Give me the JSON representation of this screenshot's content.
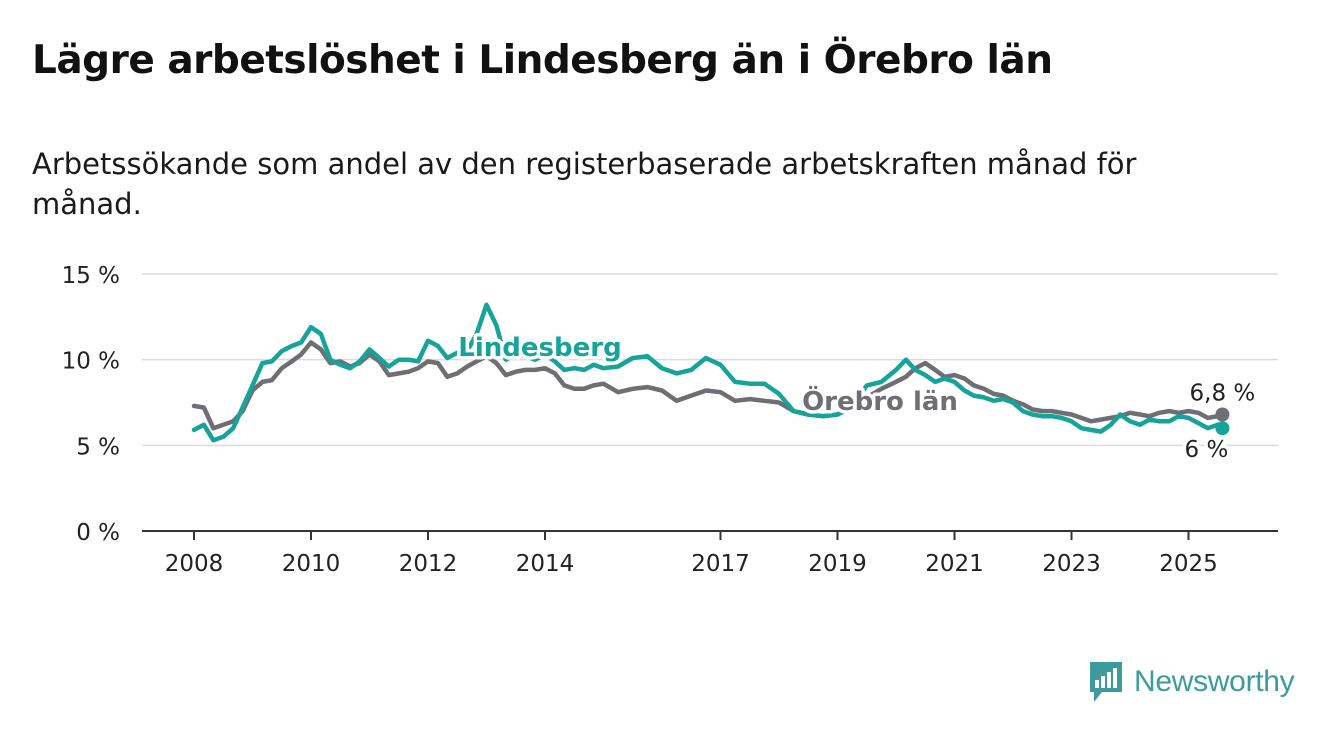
{
  "title": "Lägre arbetslöshet i Lindesberg än i Örebro län",
  "subtitle": "Arbetssökande som andel av den registerbaserade arbetskraften månad för månad.",
  "brand": {
    "name": "Newsworthy",
    "icon": "bar-chart-speech-bubble-icon",
    "color": "#3d9b9b"
  },
  "chart_data": {
    "type": "line",
    "ylim": [
      0,
      15
    ],
    "xlim": [
      2008,
      2027.3
    ],
    "y_ticks": [
      0,
      5,
      10,
      15
    ],
    "y_tick_labels": [
      "0 %",
      "5 %",
      "10 %",
      "15 %"
    ],
    "x_ticks": [
      2008,
      2010,
      2012,
      2014,
      2017,
      2019,
      2021,
      2023,
      2025
    ],
    "x_tick_labels": [
      "2008",
      "2010",
      "2012",
      "2014",
      "2017",
      "2019",
      "2021",
      "2023",
      "2025"
    ],
    "grid": true,
    "legend": "inline labels",
    "series": [
      {
        "name": "Örebro län",
        "color": "#6e6e75",
        "end_label": "6,8 %",
        "x": [
          2008.0,
          2008.17,
          2008.33,
          2008.5,
          2008.67,
          2008.83,
          2009.0,
          2009.17,
          2009.33,
          2009.5,
          2009.67,
          2009.83,
          2010.0,
          2010.17,
          2010.33,
          2010.5,
          2010.67,
          2010.83,
          2011.0,
          2011.17,
          2011.33,
          2011.5,
          2011.67,
          2011.83,
          2012.0,
          2012.17,
          2012.33,
          2012.5,
          2012.67,
          2012.83,
          2013.0,
          2013.17,
          2013.33,
          2013.5,
          2013.67,
          2013.83,
          2014.0,
          2014.17,
          2014.33,
          2014.5,
          2014.67,
          2014.83,
          2015.0,
          2015.25,
          2015.5,
          2015.75,
          2016.0,
          2016.25,
          2016.5,
          2016.75,
          2017.0,
          2017.25,
          2017.5,
          2017.75,
          2018.0,
          2018.25,
          2018.5,
          2018.75,
          2019.0,
          2019.25,
          2019.5,
          2019.75,
          2020.0,
          2020.17,
          2020.33,
          2020.5,
          2020.67,
          2020.83,
          2021.0,
          2021.17,
          2021.33,
          2021.5,
          2021.67,
          2021.83,
          2022.0,
          2022.17,
          2022.33,
          2022.5,
          2022.67,
          2022.83,
          2023.0,
          2023.17,
          2023.33,
          2023.5,
          2023.67,
          2023.83,
          2024.0,
          2024.17,
          2024.33,
          2024.5,
          2024.67,
          2024.83,
          2025.0,
          2025.17,
          2025.33,
          2025.5,
          2025.58
        ],
        "y": [
          7.3,
          7.2,
          6.0,
          6.2,
          6.4,
          7.0,
          8.2,
          8.7,
          8.8,
          9.5,
          9.9,
          10.3,
          11.0,
          10.6,
          9.8,
          9.9,
          9.6,
          9.8,
          10.3,
          9.9,
          9.1,
          9.2,
          9.3,
          9.5,
          9.9,
          9.8,
          9.0,
          9.2,
          9.6,
          9.9,
          10.2,
          9.8,
          9.1,
          9.3,
          9.4,
          9.4,
          9.5,
          9.2,
          8.5,
          8.3,
          8.3,
          8.5,
          8.6,
          8.1,
          8.3,
          8.4,
          8.2,
          7.6,
          7.9,
          8.2,
          8.1,
          7.6,
          7.7,
          7.6,
          7.5,
          7.0,
          6.8,
          6.7,
          6.8,
          7.2,
          7.8,
          8.3,
          8.7,
          9.0,
          9.5,
          9.8,
          9.4,
          9.0,
          9.1,
          8.9,
          8.5,
          8.3,
          8.0,
          7.9,
          7.6,
          7.4,
          7.1,
          7.0,
          7.0,
          6.9,
          6.8,
          6.6,
          6.4,
          6.5,
          6.6,
          6.7,
          6.9,
          6.8,
          6.7,
          6.9,
          7.0,
          6.9,
          7.0,
          6.9,
          6.6,
          6.7,
          6.8
        ]
      },
      {
        "name": "Lindesberg",
        "color": "#16a39a",
        "end_label": "6 %",
        "x": [
          2008.0,
          2008.17,
          2008.33,
          2008.5,
          2008.67,
          2008.83,
          2009.0,
          2009.17,
          2009.33,
          2009.5,
          2009.67,
          2009.83,
          2010.0,
          2010.17,
          2010.33,
          2010.5,
          2010.67,
          2010.83,
          2011.0,
          2011.17,
          2011.33,
          2011.5,
          2011.67,
          2011.83,
          2012.0,
          2012.17,
          2012.33,
          2012.5,
          2012.67,
          2012.83,
          2013.0,
          2013.17,
          2013.33,
          2013.5,
          2013.67,
          2013.83,
          2014.0,
          2014.17,
          2014.33,
          2014.5,
          2014.67,
          2014.83,
          2015.0,
          2015.25,
          2015.5,
          2015.75,
          2016.0,
          2016.25,
          2016.5,
          2016.75,
          2017.0,
          2017.25,
          2017.5,
          2017.75,
          2018.0,
          2018.25,
          2018.5,
          2018.75,
          2019.0,
          2019.25,
          2019.5,
          2019.75,
          2020.0,
          2020.17,
          2020.33,
          2020.5,
          2020.67,
          2020.83,
          2021.0,
          2021.17,
          2021.33,
          2021.5,
          2021.67,
          2021.83,
          2022.0,
          2022.17,
          2022.33,
          2022.5,
          2022.67,
          2022.83,
          2023.0,
          2023.17,
          2023.33,
          2023.5,
          2023.67,
          2023.83,
          2024.0,
          2024.17,
          2024.33,
          2024.5,
          2024.67,
          2024.83,
          2025.0,
          2025.17,
          2025.33,
          2025.5,
          2025.58
        ],
        "y": [
          5.9,
          6.2,
          5.3,
          5.5,
          6.0,
          7.2,
          8.5,
          9.8,
          9.9,
          10.5,
          10.8,
          11.0,
          11.9,
          11.5,
          10.0,
          9.7,
          9.5,
          9.9,
          10.6,
          10.1,
          9.6,
          10.0,
          10.0,
          9.9,
          11.1,
          10.8,
          10.1,
          10.4,
          10.5,
          11.5,
          13.2,
          12.0,
          10.0,
          10.3,
          10.2,
          10.0,
          10.3,
          9.9,
          9.4,
          9.5,
          9.4,
          9.7,
          9.5,
          9.6,
          10.1,
          10.2,
          9.5,
          9.2,
          9.4,
          10.1,
          9.7,
          8.7,
          8.6,
          8.6,
          8.0,
          7.0,
          6.8,
          6.7,
          6.8,
          7.3,
          8.5,
          8.7,
          9.4,
          10.0,
          9.4,
          9.1,
          8.7,
          8.9,
          8.7,
          8.2,
          7.9,
          7.8,
          7.6,
          7.7,
          7.5,
          7.0,
          6.8,
          6.7,
          6.7,
          6.6,
          6.4,
          6.0,
          5.9,
          5.8,
          6.2,
          6.8,
          6.4,
          6.2,
          6.5,
          6.4,
          6.4,
          6.7,
          6.6,
          6.3,
          6.0,
          6.2,
          6.0
        ]
      }
    ]
  }
}
